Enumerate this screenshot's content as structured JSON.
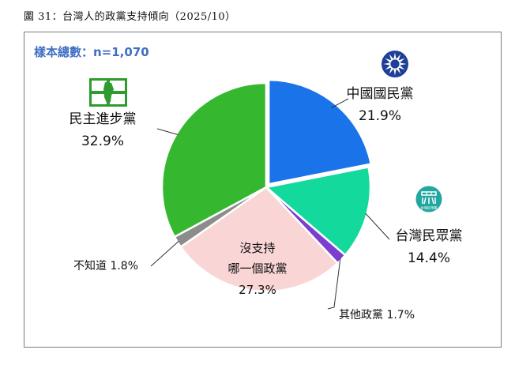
{
  "caption": "圖 31：台灣人的政黨支持傾向（2025/10）",
  "sample_text": "樣本總數：n=1,070",
  "chart_data": {
    "type": "pie",
    "slices": [
      {
        "key": "kmt",
        "label": "中國國民黨",
        "value": 21.9,
        "value_text": "21.9%",
        "color": "#1a73e8"
      },
      {
        "key": "tpp",
        "label": "台灣民眾黨",
        "value": 14.4,
        "value_text": "14.4%",
        "color": "#14d99c"
      },
      {
        "key": "other",
        "label": "其他政黨",
        "value": 1.7,
        "value_text": "1.7%",
        "color": "#7b3fd0"
      },
      {
        "key": "none",
        "label": [
          "沒支持",
          "哪一個政黨"
        ],
        "value": 27.3,
        "value_text": "27.3%",
        "color": "#f9d5d5"
      },
      {
        "key": "dk",
        "label": "不知道",
        "value": 1.8,
        "value_text": "1.8%",
        "color": "#8c8c8c"
      },
      {
        "key": "dpp",
        "label": "民主進步黨",
        "value": 32.9,
        "value_text": "32.9%",
        "color": "#35b82f"
      }
    ],
    "start": "12 o'clock",
    "direction": "clockwise"
  },
  "logos": {
    "kmt": {
      "name": "kmt-emblem-icon",
      "color": "#1f3f97"
    },
    "tpp": {
      "name": "tpp-logo-icon",
      "text": "台灣民眾黨",
      "color": "#1f8f8a"
    },
    "dpp": {
      "name": "dpp-taiwan-flag-icon",
      "color": "#2e9b2e"
    }
  }
}
